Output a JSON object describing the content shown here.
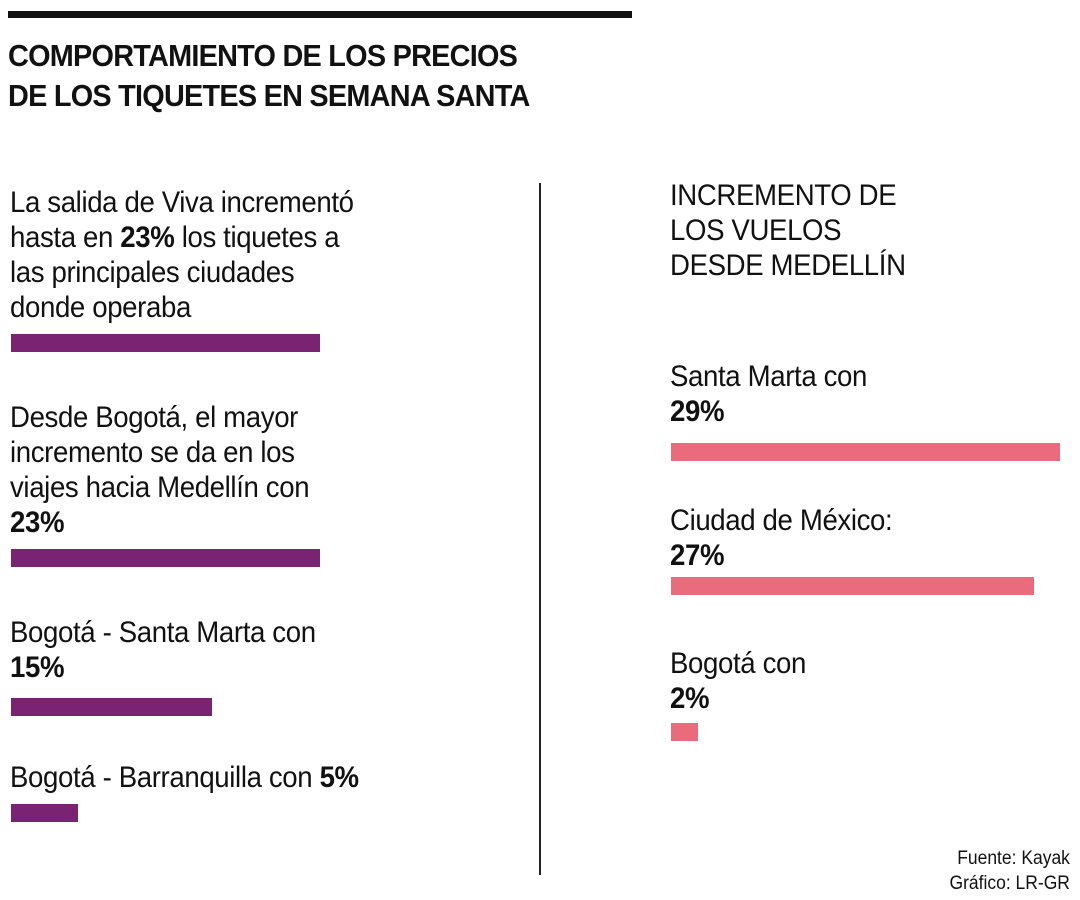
{
  "title": [
    "COMPORTAMIENTO DE LOS PRECIOS",
    "DE LOS TIQUETES EN SEMANA SANTA"
  ],
  "colors": {
    "left": "#7b2373",
    "right": "#e96b7c"
  },
  "chart_data": [
    {
      "type": "bar",
      "title": "",
      "categories": [
        "Salida de Viva (principales ciudades)",
        "Bogotá - Medellín",
        "Bogotá - Santa Marta",
        "Bogotá - Barranquilla"
      ],
      "values": [
        23,
        23,
        15,
        5
      ],
      "unit": "%",
      "labels": {
        "item1": {
          "l1": "La salida de Viva incrementó",
          "l2a": "hasta en ",
          "l2b": "23%",
          "l2c": " los tiquetes a",
          "l3": "las principales ciudades",
          "l4": "donde operaba"
        },
        "item2": {
          "l1": "Desde Bogotá, el mayor",
          "l2": "incremento se da en los",
          "l3": "viajes hacia Medellín con",
          "l4": "23%"
        },
        "item3": {
          "l1": "Bogotá - Santa Marta con",
          "l2": "15%"
        },
        "item4": {
          "l1a": "Bogotá - Barranquilla con ",
          "l1b": "5%"
        }
      }
    },
    {
      "type": "bar",
      "title": [
        "INCREMENTO DE",
        "LOS VUELOS",
        "DESDE MEDELLÍN"
      ],
      "categories": [
        "Santa Marta",
        "Ciudad de México",
        "Bogotá"
      ],
      "values": [
        29,
        27,
        2
      ],
      "unit": "%",
      "labels": {
        "item1": {
          "l1": "Santa Marta con",
          "l2": "29%"
        },
        "item2": {
          "l1": "Ciudad de México:",
          "l2": "27%"
        },
        "item3": {
          "l1": "Bogotá con",
          "l2": "2%"
        }
      }
    }
  ],
  "source": {
    "fuente": "Fuente: Kayak",
    "grafico": "Gráfico: LR-GR"
  }
}
